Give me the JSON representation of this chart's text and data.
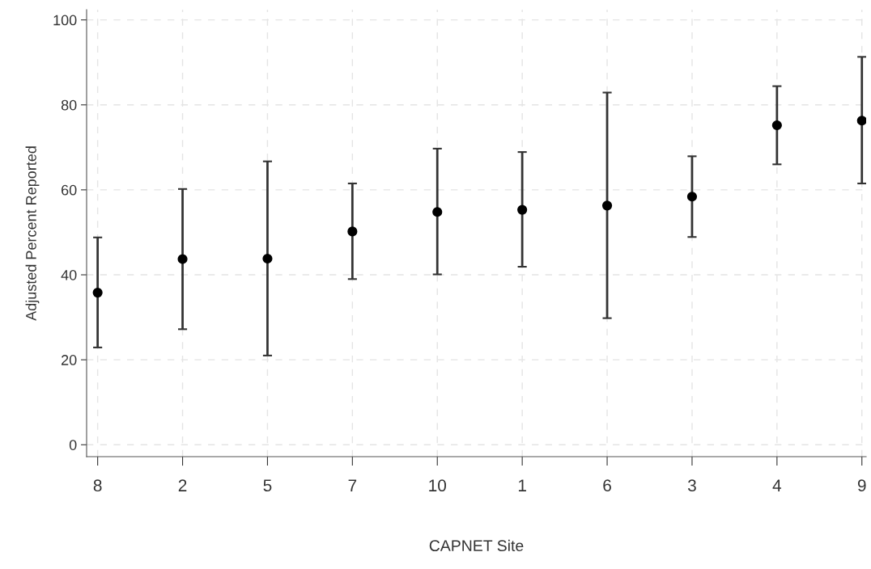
{
  "chart_data": {
    "type": "scatter",
    "xlabel": "CAPNET Site",
    "ylabel": "Adjusted Percent Reported",
    "categories": [
      "8",
      "2",
      "5",
      "7",
      "10",
      "1",
      "6",
      "3",
      "4",
      "9"
    ],
    "values": [
      35.8,
      43.7,
      43.8,
      50.2,
      54.8,
      55.3,
      56.3,
      58.4,
      75.2,
      76.3
    ],
    "errors": [
      [
        22.9,
        48.8
      ],
      [
        27.2,
        60.2
      ],
      [
        21.0,
        66.7
      ],
      [
        39.0,
        61.5
      ],
      [
        40.1,
        69.7
      ],
      [
        41.9,
        68.9
      ],
      [
        29.8,
        82.9
      ],
      [
        48.9,
        67.9
      ],
      [
        66.0,
        84.4
      ],
      [
        61.5,
        91.3
      ]
    ],
    "color": "#000000",
    "marker": "circle",
    "ylim": [
      -2.8,
      102.4
    ],
    "yticks": [
      0,
      20,
      40,
      60,
      80,
      100
    ],
    "grid": true
  }
}
